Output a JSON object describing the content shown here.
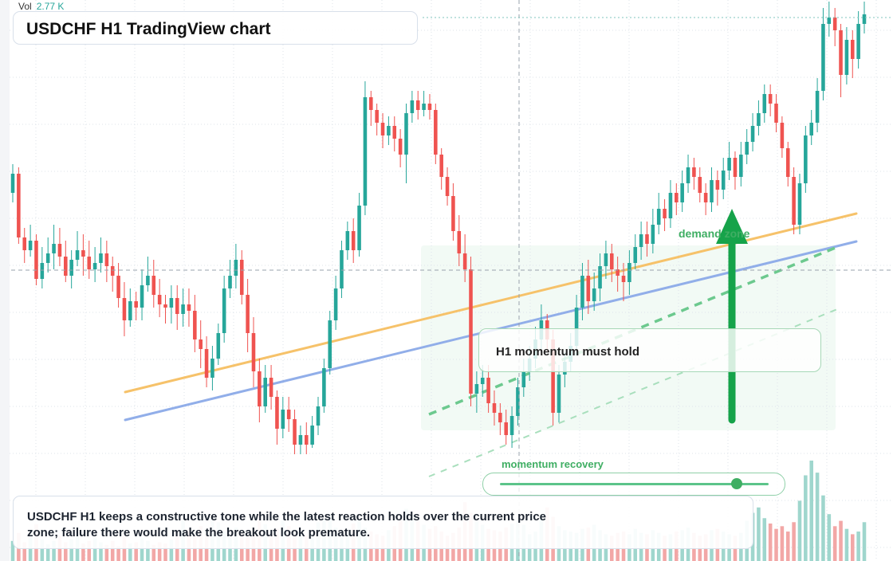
{
  "header": {
    "vol_label": "Vol",
    "vol_value": "2.77 K",
    "title": "USDCHF H1 TradingView chart"
  },
  "annotations": {
    "note": "H1 momentum must hold",
    "demand_label": "demand zone",
    "momentum_label": "momentum recovery",
    "momentum_level": 0.88,
    "caption": "USDCHF H1 keeps a constructive tone while the latest reaction holds over the current price zone; failure there would make the breakout look premature."
  },
  "colors": {
    "up": "#26a69a",
    "down": "#ef5350",
    "vol_up": "#9fd6cd",
    "vol_down": "#f2a7a6",
    "trend_orange": "#f6c26a",
    "trend_blue": "#91aee9",
    "accent_green": "#16a34a",
    "grid": "#dde3ea"
  },
  "chart_data": {
    "type": "candlestick",
    "symbol": "USDCHF",
    "timeframe": "H1",
    "candles": [
      [
        0.52,
        0.58,
        0.61,
        0.49
      ],
      [
        0.58,
        0.38,
        0.6,
        0.36
      ],
      [
        0.38,
        0.34,
        0.41,
        0.3
      ],
      [
        0.34,
        0.37,
        0.42,
        0.32
      ],
      [
        0.37,
        0.25,
        0.39,
        0.23
      ],
      [
        0.25,
        0.3,
        0.35,
        0.22
      ],
      [
        0.3,
        0.33,
        0.38,
        0.27
      ],
      [
        0.33,
        0.36,
        0.42,
        0.28
      ],
      [
        0.36,
        0.32,
        0.41,
        0.29
      ],
      [
        0.32,
        0.26,
        0.37,
        0.24
      ],
      [
        0.26,
        0.31,
        0.34,
        0.22
      ],
      [
        0.31,
        0.34,
        0.4,
        0.29
      ],
      [
        0.34,
        0.32,
        0.39,
        0.26
      ],
      [
        0.32,
        0.28,
        0.37,
        0.25
      ],
      [
        0.28,
        0.3,
        0.35,
        0.24
      ],
      [
        0.3,
        0.33,
        0.38,
        0.27
      ],
      [
        0.33,
        0.29,
        0.37,
        0.24
      ],
      [
        0.29,
        0.26,
        0.32,
        0.21
      ],
      [
        0.26,
        0.19,
        0.3,
        0.16
      ],
      [
        0.19,
        0.12,
        0.24,
        0.07
      ],
      [
        0.12,
        0.18,
        0.22,
        0.1
      ],
      [
        0.18,
        0.16,
        0.21,
        0.12
      ],
      [
        0.16,
        0.23,
        0.28,
        0.12
      ],
      [
        0.23,
        0.26,
        0.32,
        0.21
      ],
      [
        0.26,
        0.2,
        0.31,
        0.16
      ],
      [
        0.2,
        0.17,
        0.25,
        0.13
      ],
      [
        0.17,
        0.16,
        0.2,
        0.11
      ],
      [
        0.16,
        0.19,
        0.23,
        0.11
      ],
      [
        0.19,
        0.14,
        0.23,
        0.09
      ],
      [
        0.14,
        0.17,
        0.22,
        0.1
      ],
      [
        0.17,
        0.15,
        0.22,
        0.1
      ],
      [
        0.15,
        0.06,
        0.2,
        0.02
      ],
      [
        0.06,
        0.03,
        0.12,
        -0.03
      ],
      [
        0.03,
        -0.06,
        0.07,
        -0.09
      ],
      [
        -0.06,
        0.0,
        0.04,
        -0.1
      ],
      [
        0.0,
        0.08,
        0.11,
        -0.02
      ],
      [
        0.08,
        0.22,
        0.26,
        0.05
      ],
      [
        0.22,
        0.26,
        0.31,
        0.19
      ],
      [
        0.26,
        0.31,
        0.36,
        0.22
      ],
      [
        0.31,
        0.2,
        0.34,
        0.17
      ],
      [
        0.2,
        0.08,
        0.25,
        0.02
      ],
      [
        0.08,
        -0.04,
        0.13,
        -0.09
      ],
      [
        -0.04,
        -0.15,
        0.0,
        -0.2
      ],
      [
        -0.15,
        -0.06,
        -0.02,
        -0.17
      ],
      [
        -0.06,
        -0.12,
        -0.02,
        -0.16
      ],
      [
        -0.12,
        -0.22,
        -0.1,
        -0.27
      ],
      [
        -0.22,
        -0.16,
        -0.12,
        -0.25
      ],
      [
        -0.16,
        -0.19,
        -0.12,
        -0.23
      ],
      [
        -0.19,
        -0.27,
        -0.16,
        -0.3
      ],
      [
        -0.27,
        -0.24,
        -0.21,
        -0.3
      ],
      [
        -0.24,
        -0.27,
        -0.2,
        -0.3
      ],
      [
        -0.27,
        -0.21,
        -0.18,
        -0.28
      ],
      [
        -0.21,
        -0.15,
        -0.12,
        -0.24
      ],
      [
        -0.15,
        -0.03,
        0.0,
        -0.17
      ],
      [
        -0.03,
        0.12,
        0.15,
        -0.05
      ],
      [
        0.12,
        0.22,
        0.26,
        0.09
      ],
      [
        0.22,
        0.34,
        0.37,
        0.19
      ],
      [
        0.34,
        0.4,
        0.43,
        0.31
      ],
      [
        0.4,
        0.34,
        0.44,
        0.3
      ],
      [
        0.34,
        0.48,
        0.52,
        0.32
      ],
      [
        0.48,
        0.82,
        0.87,
        0.45
      ],
      [
        0.82,
        0.78,
        0.84,
        0.73
      ],
      [
        0.78,
        0.74,
        0.8,
        0.7
      ],
      [
        0.74,
        0.7,
        0.77,
        0.66
      ],
      [
        0.7,
        0.73,
        0.76,
        0.67
      ],
      [
        0.73,
        0.69,
        0.76,
        0.65
      ],
      [
        0.69,
        0.64,
        0.72,
        0.6
      ],
      [
        0.64,
        0.77,
        0.8,
        0.55
      ],
      [
        0.77,
        0.81,
        0.84,
        0.74
      ],
      [
        0.81,
        0.78,
        0.84,
        0.75
      ],
      [
        0.78,
        0.8,
        0.84,
        0.76
      ],
      [
        0.8,
        0.78,
        0.83,
        0.75
      ],
      [
        0.78,
        0.64,
        0.8,
        0.61
      ],
      [
        0.64,
        0.57,
        0.66,
        0.53
      ],
      [
        0.57,
        0.51,
        0.6,
        0.48
      ],
      [
        0.51,
        0.4,
        0.55,
        0.37
      ],
      [
        0.4,
        0.33,
        0.45,
        0.29
      ],
      [
        0.33,
        0.28,
        0.39,
        0.24
      ],
      [
        0.28,
        -0.11,
        0.32,
        -0.15
      ],
      [
        -0.11,
        -0.08,
        -0.04,
        -0.17
      ],
      [
        -0.08,
        -0.06,
        -0.02,
        -0.12
      ],
      [
        -0.06,
        -0.14,
        -0.02,
        -0.17
      ],
      [
        -0.14,
        -0.17,
        -0.1,
        -0.21
      ],
      [
        -0.17,
        -0.2,
        -0.14,
        -0.24
      ],
      [
        -0.2,
        -0.24,
        -0.16,
        -0.27
      ],
      [
        -0.24,
        -0.18,
        -0.15,
        -0.28
      ],
      [
        -0.18,
        -0.09,
        -0.06,
        -0.21
      ],
      [
        -0.09,
        -0.04,
        0.0,
        -0.12
      ],
      [
        -0.04,
        0.0,
        0.04,
        -0.07
      ],
      [
        0.0,
        0.06,
        0.1,
        -0.03
      ],
      [
        0.06,
        0.12,
        0.17,
        0.03
      ],
      [
        0.12,
        0.06,
        0.14,
        0.02
      ],
      [
        0.06,
        -0.17,
        0.09,
        -0.21
      ],
      [
        -0.17,
        -0.05,
        -0.02,
        -0.2
      ],
      [
        -0.05,
        -0.01,
        0.02,
        -0.09
      ],
      [
        -0.01,
        0.04,
        0.08,
        -0.04
      ],
      [
        0.04,
        0.16,
        0.2,
        0.01
      ],
      [
        0.16,
        0.26,
        0.3,
        0.12
      ],
      [
        0.26,
        0.18,
        0.31,
        0.14
      ],
      [
        0.18,
        0.22,
        0.27,
        0.15
      ],
      [
        0.22,
        0.29,
        0.33,
        0.18
      ],
      [
        0.29,
        0.33,
        0.37,
        0.25
      ],
      [
        0.33,
        0.28,
        0.36,
        0.24
      ],
      [
        0.28,
        0.26,
        0.32,
        0.21
      ],
      [
        0.26,
        0.24,
        0.3,
        0.18
      ],
      [
        0.24,
        0.3,
        0.34,
        0.2
      ],
      [
        0.3,
        0.35,
        0.39,
        0.28
      ],
      [
        0.35,
        0.39,
        0.43,
        0.31
      ],
      [
        0.39,
        0.36,
        0.43,
        0.32
      ],
      [
        0.36,
        0.42,
        0.47,
        0.33
      ],
      [
        0.42,
        0.47,
        0.52,
        0.39
      ],
      [
        0.47,
        0.44,
        0.5,
        0.4
      ],
      [
        0.44,
        0.52,
        0.56,
        0.41
      ],
      [
        0.52,
        0.49,
        0.55,
        0.45
      ],
      [
        0.49,
        0.55,
        0.59,
        0.46
      ],
      [
        0.55,
        0.6,
        0.64,
        0.52
      ],
      [
        0.6,
        0.57,
        0.63,
        0.53
      ],
      [
        0.57,
        0.52,
        0.6,
        0.49
      ],
      [
        0.52,
        0.49,
        0.55,
        0.45
      ],
      [
        0.49,
        0.56,
        0.6,
        0.46
      ],
      [
        0.56,
        0.53,
        0.59,
        0.48
      ],
      [
        0.53,
        0.59,
        0.63,
        0.5
      ],
      [
        0.59,
        0.63,
        0.68,
        0.56
      ],
      [
        0.63,
        0.57,
        0.65,
        0.53
      ],
      [
        0.57,
        0.64,
        0.68,
        0.54
      ],
      [
        0.64,
        0.68,
        0.72,
        0.61
      ],
      [
        0.68,
        0.73,
        0.77,
        0.65
      ],
      [
        0.73,
        0.77,
        0.81,
        0.7
      ],
      [
        0.77,
        0.83,
        0.86,
        0.74
      ],
      [
        0.83,
        0.8,
        0.86,
        0.76
      ],
      [
        0.8,
        0.74,
        0.83,
        0.71
      ],
      [
        0.74,
        0.66,
        0.76,
        0.63
      ],
      [
        0.66,
        0.57,
        0.68,
        0.54
      ],
      [
        0.57,
        0.42,
        0.6,
        0.39
      ],
      [
        0.42,
        0.55,
        0.58,
        0.39
      ],
      [
        0.55,
        0.7,
        0.73,
        0.52
      ],
      [
        0.7,
        0.74,
        0.78,
        0.67
      ],
      [
        0.74,
        0.84,
        0.88,
        0.71
      ],
      [
        0.84,
        1.05,
        1.1,
        0.81
      ],
      [
        1.05,
        1.07,
        1.12,
        1.01
      ],
      [
        1.07,
        1.03,
        1.1,
        0.98
      ],
      [
        1.03,
        0.89,
        1.05,
        0.82
      ],
      [
        0.89,
        1.0,
        1.04,
        0.86
      ],
      [
        1.0,
        0.94,
        1.03,
        0.88
      ],
      [
        0.94,
        1.05,
        1.09,
        0.91
      ],
      [
        1.05,
        1.08,
        1.12,
        1.02
      ]
    ],
    "volumes": [
      30,
      42,
      28,
      35,
      55,
      32,
      25,
      30,
      38,
      28,
      33,
      40,
      26,
      30,
      35,
      28,
      24,
      30,
      22,
      38,
      26,
      28,
      34,
      30,
      24,
      28,
      26,
      32,
      46,
      60,
      48,
      38,
      52,
      40,
      64,
      58,
      44,
      36,
      50,
      42,
      38,
      50,
      70,
      55,
      40,
      48,
      60,
      52,
      40,
      44,
      38,
      42,
      58,
      62,
      70,
      50,
      46,
      44,
      56,
      62,
      50,
      44,
      40,
      38,
      46,
      52,
      64,
      78,
      70,
      60,
      54,
      48,
      52,
      44,
      38,
      42,
      50,
      88,
      72,
      60,
      54,
      48,
      46,
      44,
      50,
      56,
      60,
      54,
      40,
      44,
      62,
      80,
      66,
      52,
      46,
      44,
      42,
      48,
      50,
      54,
      46,
      40,
      38,
      42,
      44,
      40,
      48,
      42,
      40,
      46,
      42,
      38,
      40,
      44,
      46,
      50,
      42,
      38,
      40,
      46,
      48,
      44,
      40,
      38,
      42,
      60,
      72,
      80,
      64,
      56,
      48,
      52,
      44,
      58,
      90,
      128,
      150,
      132,
      98,
      70,
      52,
      60,
      48,
      40,
      44,
      58
    ]
  }
}
